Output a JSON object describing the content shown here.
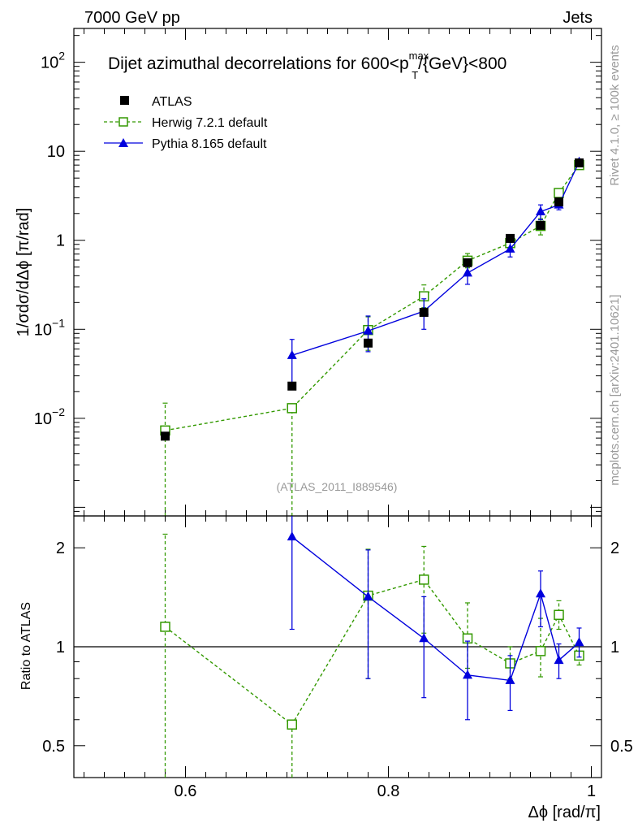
{
  "header": {
    "left": "7000 GeV pp",
    "right": "Jets"
  },
  "side_labels": {
    "rivet": "Rivet 4.1.0, ≥ 100k events",
    "mcplots": "mcplots.cern.ch [arXiv:2401.10621]"
  },
  "colors": {
    "atlas": "#000000",
    "herwig": "#339900",
    "pythia": "#0000dd",
    "analysis_tag": "#999999"
  },
  "chart_data": [
    {
      "type": "scatter",
      "panel": "main",
      "title": "Dijet azimuthal decorrelations for 600<p",
      "title_sup": "max",
      "title_sub": "T",
      "title_suffix": "/{GeV}<800",
      "xlabel": "Δϕ [rad/π]",
      "ylabel": "1/σdσ/dΔϕ [π/rad]",
      "yscale": "log",
      "xlim": [
        0.49,
        1.01
      ],
      "ylim": [
        0.0008,
        240
      ],
      "y_ticks": [
        {
          "value": 0.01,
          "base": "10",
          "exp": "−2"
        },
        {
          "value": 0.1,
          "base": "10",
          "exp": "−1"
        },
        {
          "value": 1,
          "base": "1",
          "exp": ""
        },
        {
          "value": 10,
          "base": "10",
          "exp": ""
        },
        {
          "value": 100,
          "base": "10",
          "exp": "2"
        }
      ],
      "analysis_tag": "(ATLAS_2011_I889546)",
      "legend": [
        "ATLAS",
        "Herwig 7.2.1 default",
        "Pythia 8.165 default"
      ],
      "series": [
        {
          "name": "ATLAS",
          "style": "data",
          "x": [
            0.58,
            0.705,
            0.78,
            0.835,
            0.878,
            0.92,
            0.95,
            0.968,
            0.988
          ],
          "y": [
            0.0063,
            0.023,
            0.07,
            0.155,
            0.56,
            1.05,
            1.47,
            2.7,
            7.4
          ]
        },
        {
          "name": "Herwig 7.2.1 default",
          "style": "dashed-open-square",
          "x": [
            0.58,
            0.705,
            0.78,
            0.835,
            0.878,
            0.92,
            0.95,
            0.968,
            0.988
          ],
          "y": [
            0.0073,
            0.013,
            0.098,
            0.235,
            0.59,
            0.93,
            1.45,
            3.4,
            7.0
          ],
          "err_lo": [
            0.0073,
            0.013,
            0.04,
            0.06,
            0.1,
            0.1,
            0.3,
            0.4,
            0.4
          ],
          "err_hi": [
            0.0075,
            0.0,
            0.04,
            0.08,
            0.12,
            0.12,
            0.3,
            0.4,
            0.4
          ]
        },
        {
          "name": "Pythia 8.165 default",
          "style": "solid-filled-triangle",
          "x": [
            0.705,
            0.78,
            0.835,
            0.878,
            0.92,
            0.95,
            0.968,
            0.988
          ],
          "y": [
            0.051,
            0.096,
            0.16,
            0.43,
            0.8,
            2.1,
            2.5,
            7.6
          ],
          "err_lo": [
            0.026,
            0.04,
            0.06,
            0.11,
            0.15,
            0.4,
            0.3,
            0.4
          ],
          "err_hi": [
            0.026,
            0.045,
            0.06,
            0.11,
            0.15,
            0.4,
            0.3,
            0.4
          ]
        }
      ]
    },
    {
      "type": "scatter",
      "panel": "ratio",
      "ylabel": "Ratio to ATLAS",
      "xlabel": "Δϕ [rad/π]",
      "yscale": "log",
      "xlim": [
        0.49,
        1.01
      ],
      "ylim": [
        0.4,
        2.5
      ],
      "y_ticks": [
        {
          "value": 0.5,
          "label": "0.5"
        },
        {
          "value": 1,
          "label": "1"
        },
        {
          "value": 2,
          "label": "2"
        }
      ],
      "x_ticks": [
        {
          "value": 0.6,
          "label": "0.6"
        },
        {
          "value": 0.8,
          "label": "0.8"
        },
        {
          "value": 1.0,
          "label": "1"
        }
      ],
      "reference_line": 1,
      "series": [
        {
          "name": "Herwig 7.2.1 default",
          "style": "dashed-open-square",
          "x": [
            0.58,
            0.705,
            0.78,
            0.835,
            0.878,
            0.92,
            0.95,
            0.968,
            0.988
          ],
          "y": [
            1.15,
            0.58,
            1.43,
            1.6,
            1.06,
            0.89,
            0.97,
            1.25,
            0.94
          ],
          "err_lo": [
            1.0,
            0.58,
            0.63,
            0.5,
            0.2,
            0.09,
            0.16,
            0.12,
            0.06
          ],
          "err_hi": [
            1.05,
            0.0,
            0.55,
            0.42,
            0.3,
            0.11,
            0.25,
            0.13,
            0.07
          ]
        },
        {
          "name": "Pythia 8.165 default",
          "style": "solid-filled-triangle",
          "x": [
            0.705,
            0.78,
            0.835,
            0.878,
            0.92,
            0.95,
            0.968,
            0.988
          ],
          "y": [
            2.16,
            1.42,
            1.06,
            0.82,
            0.79,
            1.45,
            0.91,
            1.03
          ],
          "err_lo": [
            1.03,
            0.62,
            0.36,
            0.22,
            0.15,
            0.3,
            0.11,
            0.1
          ],
          "err_hi": [
            1.03,
            0.55,
            0.36,
            0.22,
            0.15,
            0.25,
            0.11,
            0.11
          ]
        }
      ]
    }
  ]
}
